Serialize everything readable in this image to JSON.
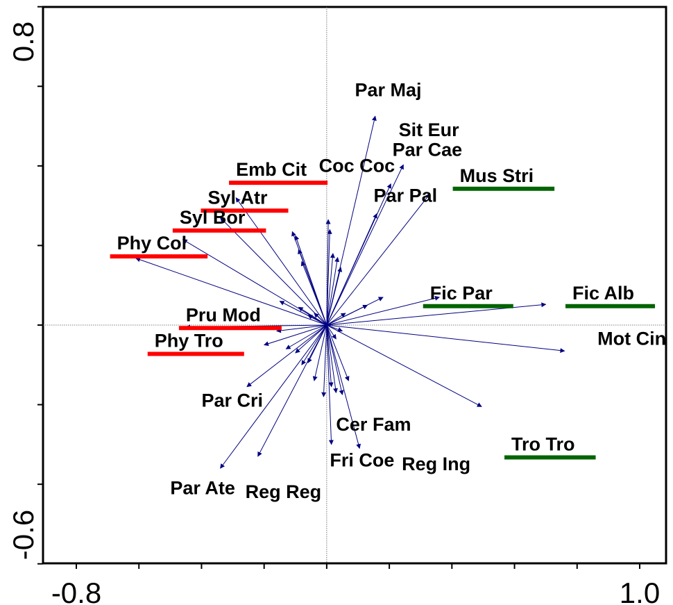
{
  "chart_data": {
    "type": "scatter",
    "subtype": "ordination-biplot",
    "title": "",
    "xlabel": "",
    "ylabel": "",
    "xlim": [
      -0.8,
      1.0
    ],
    "ylim": [
      -0.6,
      0.8
    ],
    "x_tick_labels": [
      "-0.8",
      "1.0"
    ],
    "y_tick_labels": [
      "0.8",
      "-0.6"
    ],
    "grid": false,
    "origin_lines": true,
    "colors": {
      "arrow": "#000080",
      "underline_red": "#ff0000",
      "underline_green": "#006400",
      "text": "#000000"
    },
    "labeled_arrows": [
      {
        "name": "Par Maj",
        "x": 0.155,
        "y": 0.525
      },
      {
        "name": "Sit Eur",
        "x": 0.245,
        "y": 0.403
      },
      {
        "name": "Par Cae",
        "x": 0.205,
        "y": 0.355
      },
      {
        "name": "Mus Stri",
        "x": 0.33,
        "y": 0.33
      },
      {
        "name": "Par Pal",
        "x": 0.16,
        "y": 0.28
      },
      {
        "name": "Emb Cit",
        "x": -0.29,
        "y": 0.32
      },
      {
        "name": "Syl Atr",
        "x": -0.34,
        "y": 0.27
      },
      {
        "name": "Syl Bor",
        "x": -0.46,
        "y": 0.215
      },
      {
        "name": "Phy Col",
        "x": -0.61,
        "y": 0.168
      },
      {
        "name": "Fic Par",
        "x": 0.36,
        "y": 0.07
      },
      {
        "name": "Fic Alb",
        "x": 0.7,
        "y": 0.052
      },
      {
        "name": "Pru Mod",
        "x": -0.45,
        "y": -0.005
      },
      {
        "name": "Mot Cin",
        "x": 0.76,
        "y": -0.065
      },
      {
        "name": "Par Cri",
        "x": -0.255,
        "y": -0.155
      },
      {
        "name": "Tro Tro",
        "x": 0.495,
        "y": -0.205
      },
      {
        "name": "Cer Fam",
        "x": 0.015,
        "y": -0.3
      },
      {
        "name": "Reg Ing",
        "x": 0.105,
        "y": -0.31
      },
      {
        "name": "Reg Reg",
        "x": -0.22,
        "y": -0.33
      },
      {
        "name": "Par Ate",
        "x": -0.34,
        "y": -0.36
      }
    ],
    "unlabeled_arrows": [
      [
        -0.11,
        0.235
      ],
      [
        -0.1,
        0.225
      ],
      [
        -0.09,
        0.19
      ],
      [
        -0.08,
        0.16
      ],
      [
        0.005,
        0.265
      ],
      [
        0.01,
        0.24
      ],
      [
        0.02,
        0.18
      ],
      [
        0.035,
        0.17
      ],
      [
        0.045,
        0.145
      ],
      [
        0.18,
        0.07
      ],
      [
        0.13,
        0.05
      ],
      [
        0.06,
        0.03
      ],
      [
        0.05,
        -0.015
      ],
      [
        0.03,
        -0.035
      ],
      [
        -0.15,
        0.06
      ],
      [
        -0.09,
        0.045
      ],
      [
        -0.06,
        0.025
      ],
      [
        -0.04,
        0.03
      ],
      [
        -0.16,
        -0.015
      ],
      [
        -0.2,
        -0.05
      ],
      [
        -0.13,
        -0.06
      ],
      [
        -0.1,
        -0.07
      ],
      [
        -0.08,
        -0.1
      ],
      [
        -0.06,
        -0.095
      ],
      [
        -0.04,
        -0.14
      ],
      [
        -0.01,
        -0.18
      ],
      [
        0.015,
        -0.155
      ],
      [
        0.03,
        -0.17
      ],
      [
        0.05,
        -0.175
      ],
      [
        0.07,
        -0.14
      ]
    ],
    "labels": [
      {
        "text": "Par Maj",
        "x": 0.09,
        "y": 0.575,
        "underline": "none"
      },
      {
        "text": "Sit Eur",
        "x": 0.23,
        "y": 0.475,
        "underline": "none"
      },
      {
        "text": "Par Cae",
        "x": 0.21,
        "y": 0.425,
        "underline": "none"
      },
      {
        "text": "Coc Coc",
        "x": -0.025,
        "y": 0.385,
        "underline": "none"
      },
      {
        "text": "Mus Stri",
        "x": 0.425,
        "y": 0.36,
        "underline": "green"
      },
      {
        "text": "Par Pal",
        "x": 0.15,
        "y": 0.31,
        "underline": "none"
      },
      {
        "text": "Emb Cit",
        "x": -0.29,
        "y": 0.375,
        "underline": "red"
      },
      {
        "text": "Syl Atr",
        "x": -0.38,
        "y": 0.305,
        "underline": "red"
      },
      {
        "text": "Syl Bor",
        "x": -0.47,
        "y": 0.255,
        "underline": "red"
      },
      {
        "text": "Phy Col",
        "x": -0.67,
        "y": 0.19,
        "underline": "red"
      },
      {
        "text": "Fic Par",
        "x": 0.33,
        "y": 0.065,
        "underline": "green"
      },
      {
        "text": "Fic Alb",
        "x": 0.785,
        "y": 0.065,
        "underline": "green"
      },
      {
        "text": "Pru Mod",
        "x": -0.45,
        "y": 0.01,
        "underline": "red"
      },
      {
        "text": "Phy Tro",
        "x": -0.55,
        "y": -0.055,
        "underline": "red"
      },
      {
        "text": "Mot Cin",
        "x": 0.865,
        "y": -0.05,
        "underline": "none"
      },
      {
        "text": "Par Cri",
        "x": -0.4,
        "y": -0.205,
        "underline": "none"
      },
      {
        "text": "Cer Fam",
        "x": 0.03,
        "y": -0.265,
        "underline": "none"
      },
      {
        "text": "Tro Tro",
        "x": 0.59,
        "y": -0.315,
        "underline": "green"
      },
      {
        "text": "Fri Coe",
        "x": 0.01,
        "y": -0.355,
        "underline": "none"
      },
      {
        "text": "Reg Ing",
        "x": 0.24,
        "y": -0.365,
        "underline": "none"
      },
      {
        "text": "Par Ate",
        "x": -0.5,
        "y": -0.425,
        "underline": "none"
      },
      {
        "text": "Reg Reg",
        "x": -0.26,
        "y": -0.435,
        "underline": "none"
      }
    ]
  }
}
